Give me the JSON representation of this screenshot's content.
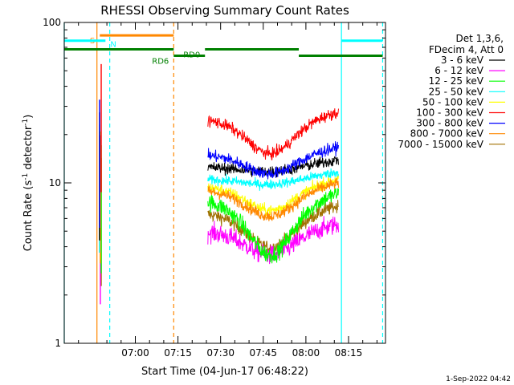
{
  "chart_data": {
    "type": "line",
    "title": "RHESSI Observing Summary Count Rates",
    "xlabel": "Start Time (04-Jun-17 06:48:22)",
    "ylabel_main": "Count Rate (s",
    "ylabel_sup1": "-1",
    "ylabel_mid": " detector",
    "ylabel_sup2": "-1",
    "ylabel_end": ")",
    "yscale": "log",
    "ylim": [
      1,
      100
    ],
    "y_ticks": [
      {
        "value": 1,
        "label": "1"
      },
      {
        "value": 10,
        "label": "10"
      },
      {
        "value": 100,
        "label": "100"
      }
    ],
    "x_range_min": [
      -13,
      100
    ],
    "x_ticks": [
      {
        "value": 12,
        "label": "07:00"
      },
      {
        "value": 27,
        "label": "07:15"
      },
      {
        "value": 42,
        "label": "07:30"
      },
      {
        "value": 57,
        "label": "07:45"
      },
      {
        "value": 72,
        "label": "08:00"
      },
      {
        "value": 87,
        "label": "08:15"
      }
    ],
    "legend_header": [
      "Det 1,3,6,",
      "FDecim 4, Att 0"
    ],
    "legend_position": "right",
    "series": [
      {
        "name": "3 - 6 keV",
        "color": "#000000",
        "base": 12.5,
        "depth": 0.07,
        "noise": 0.06
      },
      {
        "name": "6 - 12 keV",
        "color": "#ff00ff",
        "base": 5.0,
        "depth": 0.3,
        "noise": 0.1
      },
      {
        "name": "12 - 25 keV",
        "color": "#00ff00",
        "base": 7.8,
        "depth": 0.55,
        "noise": 0.09
      },
      {
        "name": "25 - 50 keV",
        "color": "#00ffff",
        "base": 10.5,
        "depth": 0.08,
        "noise": 0.05
      },
      {
        "name": "50 - 100 keV",
        "color": "#ffff00",
        "base": 9.5,
        "depth": 0.3,
        "noise": 0.06
      },
      {
        "name": "100 - 300 keV",
        "color": "#ff0000",
        "base": 25.0,
        "depth": 0.4,
        "noise": 0.06
      },
      {
        "name": "300 - 800 keV",
        "color": "#0000ff",
        "base": 15.0,
        "depth": 0.25,
        "noise": 0.06
      },
      {
        "name": "800 - 7000 keV",
        "color": "#ff8800",
        "base": 9.0,
        "depth": 0.32,
        "noise": 0.06
      },
      {
        "name": "7000 - 15000 keV",
        "color": "#a07000",
        "base": 6.5,
        "depth": 0.4,
        "noise": 0.07
      }
    ],
    "data_window_min": [
      37.5,
      83.5
    ],
    "spike_window_min": [
      -0.6,
      0.6
    ],
    "bars": [
      {
        "label": "S",
        "color": "#ff8800",
        "x_start": -0.5,
        "x_end": 25.5,
        "y": 83,
        "label_side": "left"
      },
      {
        "label": "N",
        "color": "#00ffff",
        "x_start": -13,
        "x_end": 1.5,
        "y": 77,
        "label_side": "right"
      },
      {
        "label": "",
        "color": "#00ffff",
        "x_start": 84.5,
        "x_end": 99.0,
        "y": 77,
        "label_side": "none"
      },
      {
        "label": "",
        "color": "#008000",
        "x_start": -13,
        "x_end": 25.5,
        "y": 68,
        "label_side": "none"
      },
      {
        "label": "RD6",
        "color": "#008000",
        "x_start": 25.5,
        "x_end": 36.5,
        "y": 62,
        "label_side": "left"
      },
      {
        "label": "RD0",
        "color": "#008000",
        "x_start": 36.5,
        "x_end": 69.5,
        "y": 68,
        "label_side": "left"
      },
      {
        "label": "",
        "color": "#008000",
        "x_start": 69.5,
        "x_end": 99.0,
        "y": 62,
        "label_side": "none"
      }
    ],
    "vlines": [
      {
        "x": -1.5,
        "color": "#ff8800",
        "dashed": false
      },
      {
        "x": 25.5,
        "color": "#ff8800",
        "dashed": true
      },
      {
        "x": -13.0,
        "color": "#00ffff",
        "dashed": false
      },
      {
        "x": 3.0,
        "color": "#00ffff",
        "dashed": true
      },
      {
        "x": 84.5,
        "color": "#00ffff",
        "dashed": false
      },
      {
        "x": 99.0,
        "color": "#00ffff",
        "dashed": true
      }
    ]
  },
  "footer": {
    "date_stamp": "1-Sep-2022 04:42"
  }
}
